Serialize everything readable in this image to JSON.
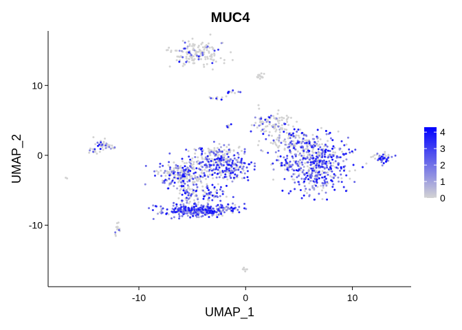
{
  "chart_data": {
    "type": "scatter",
    "title": "MUC4",
    "xlabel": "UMAP_1",
    "ylabel": "UMAP_2",
    "xlim": [
      -18.5,
      15.5
    ],
    "ylim": [
      -18.8,
      17.8
    ],
    "xticks": [
      -10,
      0,
      10
    ],
    "yticks": [
      -10,
      0,
      10
    ],
    "xtick_labels": [
      "-10",
      "0",
      "10"
    ],
    "ytick_labels": [
      "-10",
      "0",
      "10"
    ],
    "grid": false,
    "legend": {
      "placement": "right",
      "type": "colorbar",
      "min": 0,
      "max": 4.3,
      "ticks": [
        0,
        1,
        2,
        3,
        4
      ],
      "tick_labels": [
        "0",
        "1",
        "2",
        "3",
        "4"
      ],
      "low_color": "#d3d3d3",
      "high_color": "#0000ff"
    },
    "clusters": [
      {
        "cx": -4.6,
        "cy": 14.6,
        "sx": 1.3,
        "sy": 0.9,
        "n": 150,
        "expr_prob": 0.18
      },
      {
        "cx": 1.4,
        "cy": 11.3,
        "sx": 0.2,
        "sy": 0.25,
        "n": 14,
        "expr_prob": 0.1
      },
      {
        "cx": -1.2,
        "cy": 9.0,
        "sx": 0.35,
        "sy": 0.15,
        "n": 10,
        "expr_prob": 0.3
      },
      {
        "cx": -2.8,
        "cy": 8.2,
        "sx": 0.35,
        "sy": 0.12,
        "n": 10,
        "expr_prob": 0.3
      },
      {
        "cx": -1.6,
        "cy": 4.2,
        "sx": 0.25,
        "sy": 0.15,
        "n": 6,
        "expr_prob": 0.2
      },
      {
        "cx": 2.6,
        "cy": 4.5,
        "sx": 1.1,
        "sy": 0.8,
        "n": 95,
        "expr_prob": 0.25
      },
      {
        "cx": 4.6,
        "cy": 2.0,
        "sx": 1.3,
        "sy": 0.9,
        "n": 130,
        "expr_prob": 0.45
      },
      {
        "cx": 6.6,
        "cy": -1.3,
        "sx": 1.5,
        "sy": 1.9,
        "n": 480,
        "expr_prob": 0.7
      },
      {
        "cx": 3.6,
        "cy": -1.4,
        "sx": 0.5,
        "sy": 0.25,
        "n": 14,
        "expr_prob": 0.5
      },
      {
        "cx": 12.9,
        "cy": -0.4,
        "sx": 0.45,
        "sy": 0.35,
        "n": 45,
        "expr_prob": 0.45
      },
      {
        "cx": -13.5,
        "cy": 1.6,
        "sx": 0.35,
        "sy": 0.6,
        "n": 28,
        "expr_prob": 0.35
      },
      {
        "cx": -14.2,
        "cy": 0.6,
        "sx": 0.25,
        "sy": 0.3,
        "n": 10,
        "expr_prob": 0.4
      },
      {
        "cx": -12.6,
        "cy": 1.2,
        "sx": 0.3,
        "sy": 0.2,
        "n": 10,
        "expr_prob": 0.3
      },
      {
        "cx": -16.8,
        "cy": -3.3,
        "sx": 0.1,
        "sy": 0.1,
        "n": 2,
        "expr_prob": 0.0
      },
      {
        "cx": -3.5,
        "cy": -1.1,
        "sx": 1.0,
        "sy": 0.9,
        "n": 130,
        "expr_prob": 0.65
      },
      {
        "cx": -6.0,
        "cy": -2.6,
        "sx": 1.1,
        "sy": 0.9,
        "n": 190,
        "expr_prob": 0.45
      },
      {
        "cx": -1.2,
        "cy": -1.8,
        "sx": 0.9,
        "sy": 1.0,
        "n": 150,
        "expr_prob": 0.65
      },
      {
        "cx": -2.3,
        "cy": 0.5,
        "sx": 0.9,
        "sy": 0.5,
        "n": 60,
        "expr_prob": 0.3
      },
      {
        "cx": -5.3,
        "cy": -5.3,
        "sx": 0.55,
        "sy": 1.2,
        "n": 90,
        "expr_prob": 0.55
      },
      {
        "cx": -3.2,
        "cy": -5.6,
        "sx": 0.6,
        "sy": 0.9,
        "n": 60,
        "expr_prob": 0.6
      },
      {
        "cx": -4.6,
        "cy": -7.9,
        "sx": 1.8,
        "sy": 0.45,
        "n": 290,
        "expr_prob": 0.82
      },
      {
        "cx": -1.5,
        "cy": -7.6,
        "sx": 0.5,
        "sy": 0.25,
        "n": 20,
        "expr_prob": 0.7
      },
      {
        "cx": -11.9,
        "cy": -10.4,
        "sx": 0.15,
        "sy": 0.4,
        "n": 12,
        "expr_prob": 0.1
      },
      {
        "cx": -12.3,
        "cy": -11.5,
        "sx": 0.1,
        "sy": 0.1,
        "n": 2,
        "expr_prob": 0.0
      },
      {
        "cx": 0.0,
        "cy": -16.2,
        "sx": 0.15,
        "sy": 0.2,
        "n": 6,
        "expr_prob": 0.0
      }
    ]
  }
}
